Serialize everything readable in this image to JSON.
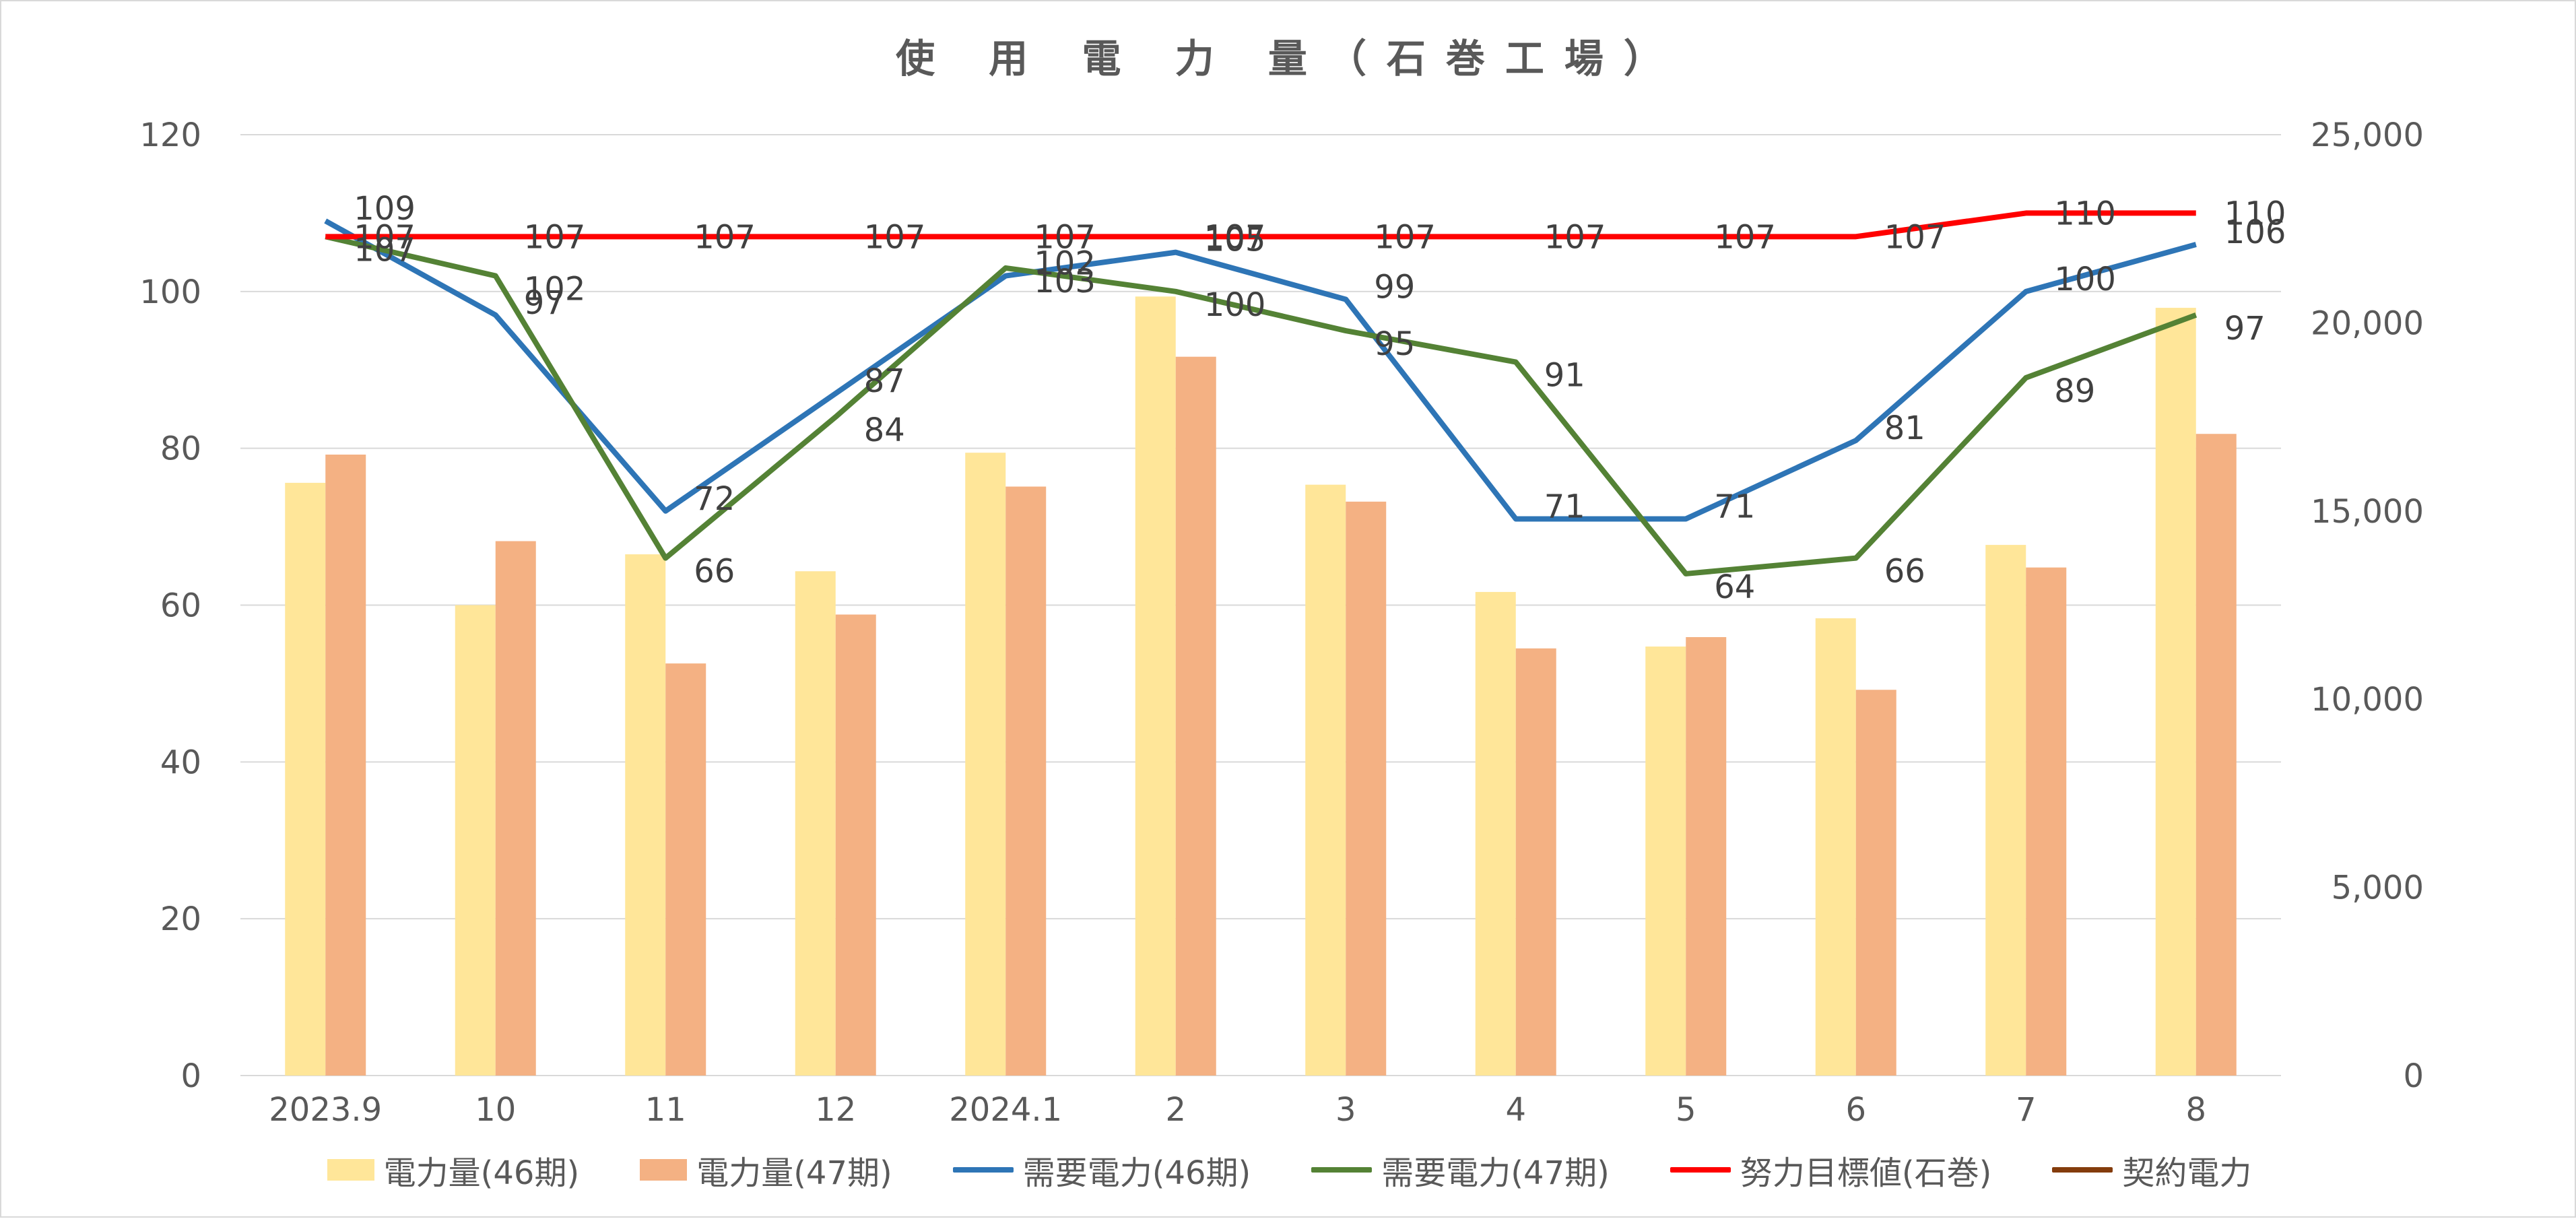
{
  "colors": {
    "bar46": "#FFE699",
    "bar47": "#F4B183",
    "demand46": "#2E75B6",
    "demand47": "#548235",
    "target": "#FF0000",
    "contract": "#843C0C",
    "grid": "#d9d9d9",
    "text": "#595959"
  },
  "chart_data": {
    "type": "bar",
    "title": "使 用 電 力 量（石巻工場）",
    "categories": [
      "2023.9",
      "10",
      "11",
      "12",
      "2024.1",
      "2",
      "3",
      "4",
      "5",
      "6",
      "7",
      "8"
    ],
    "y_left": {
      "min": 0,
      "max": 120,
      "step": 20,
      "ticks": [
        "0",
        "20",
        "40",
        "60",
        "80",
        "100",
        "120"
      ]
    },
    "y_right": {
      "min": 0,
      "max": 25000,
      "step": 5000,
      "ticks": [
        "0",
        "5,000",
        "10,000",
        "15,000",
        "20,000",
        "25,000"
      ]
    },
    "grid": true,
    "legend_position": "bottom",
    "bar_series": [
      {
        "name": "電力量(46期)",
        "axis": "right",
        "color_key": "bar46",
        "values": [
          15750,
          12500,
          13850,
          13400,
          16550,
          20700,
          15700,
          12850,
          11400,
          12150,
          14100,
          20400
        ]
      },
      {
        "name": "電力量(47期)",
        "axis": "right",
        "color_key": "bar47",
        "values": [
          16500,
          14200,
          10950,
          12250,
          15650,
          19100,
          15250,
          11350,
          11650,
          10250,
          13500,
          17050
        ]
      }
    ],
    "line_series": [
      {
        "name": "需要電力(46期)",
        "axis": "left",
        "color_key": "demand46",
        "values": [
          109,
          97,
          72,
          87,
          102,
          105,
          99,
          71,
          71,
          81,
          100,
          106
        ],
        "labels": [
          "109",
          "97",
          "72",
          "87",
          "102",
          "105",
          "99",
          "71",
          "71",
          "81",
          "100",
          "106"
        ]
      },
      {
        "name": "需要電力(47期)",
        "axis": "left",
        "color_key": "demand47",
        "values": [
          107,
          102,
          66,
          84,
          103,
          100,
          95,
          91,
          64,
          66,
          89,
          97
        ],
        "labels": [
          "107",
          "102",
          "66",
          "84",
          "103",
          "100",
          "95",
          "91",
          "64",
          "66",
          "89",
          "97"
        ]
      },
      {
        "name": "努力目標値(石巻)",
        "axis": "left",
        "color_key": "target",
        "values": [
          107,
          107,
          107,
          107,
          107,
          107,
          107,
          107,
          107,
          107,
          110,
          110
        ],
        "labels": [
          "107",
          "107",
          "107",
          "107",
          "107",
          "107",
          "107",
          "107",
          "107",
          "107",
          "110",
          "110"
        ]
      },
      {
        "name": "契約電力",
        "axis": "left",
        "color_key": "contract",
        "values": [],
        "labels": []
      }
    ]
  }
}
